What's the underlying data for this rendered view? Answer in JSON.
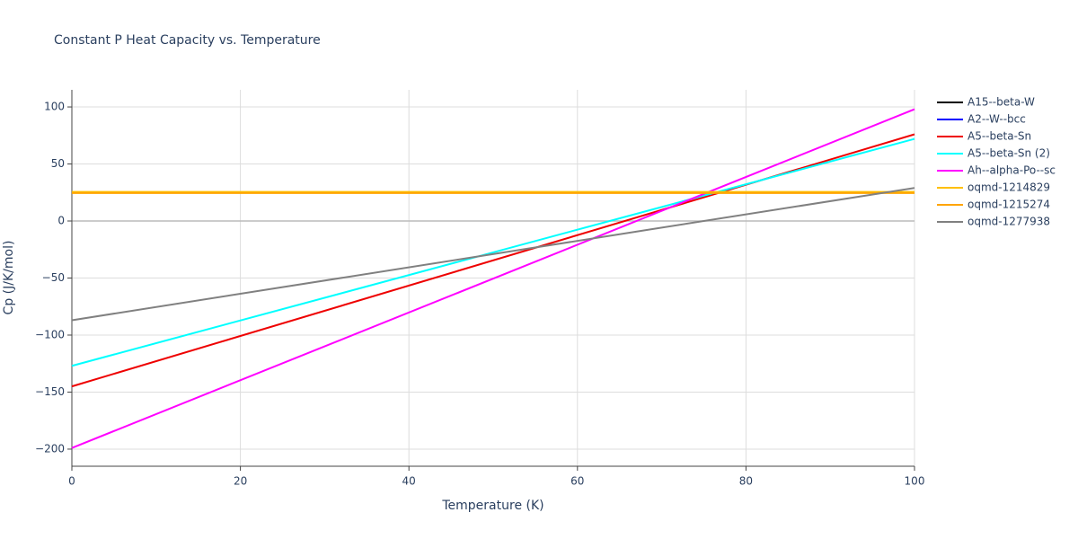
{
  "chart_data": {
    "type": "line",
    "title": "Constant P Heat Capacity vs. Temperature",
    "x_label": "Temperature (K)",
    "y_label": "Cp (J/K/mol)",
    "x": [
      0,
      100
    ],
    "xlim": [
      0,
      100
    ],
    "xticks": [
      0,
      20,
      40,
      60,
      80,
      100
    ],
    "ylim": [
      -215,
      115
    ],
    "yticks": [
      {
        "value": -200,
        "label": "−200"
      },
      {
        "value": -150,
        "label": "−150"
      },
      {
        "value": -100,
        "label": "−100"
      },
      {
        "value": -50,
        "label": "−50"
      },
      0,
      50,
      100
    ],
    "grid": true,
    "legend": "right",
    "series": [
      {
        "name": "A15--beta-W",
        "color": "#000000",
        "values": [
          25,
          25
        ]
      },
      {
        "name": "A2--W--bcc",
        "color": "#0000ff",
        "values": [
          25,
          25
        ]
      },
      {
        "name": "A5--beta-Sn",
        "color": "#ee0000",
        "values": [
          -145,
          76
        ]
      },
      {
        "name": "A5--beta-Sn (2)",
        "color": "#00ffff",
        "values": [
          -127,
          72
        ]
      },
      {
        "name": "Ah--alpha-Po--sc",
        "color": "#ff00ff",
        "values": [
          -199,
          98
        ]
      },
      {
        "name": "oqmd-1214829",
        "color": "#ffbf00",
        "values": [
          25.5,
          25.5
        ]
      },
      {
        "name": "oqmd-1215274",
        "color": "#ffa500",
        "values": [
          24.5,
          24.5
        ]
      },
      {
        "name": "oqmd-1277938",
        "color": "#808080",
        "values": [
          -87,
          29
        ]
      }
    ]
  }
}
